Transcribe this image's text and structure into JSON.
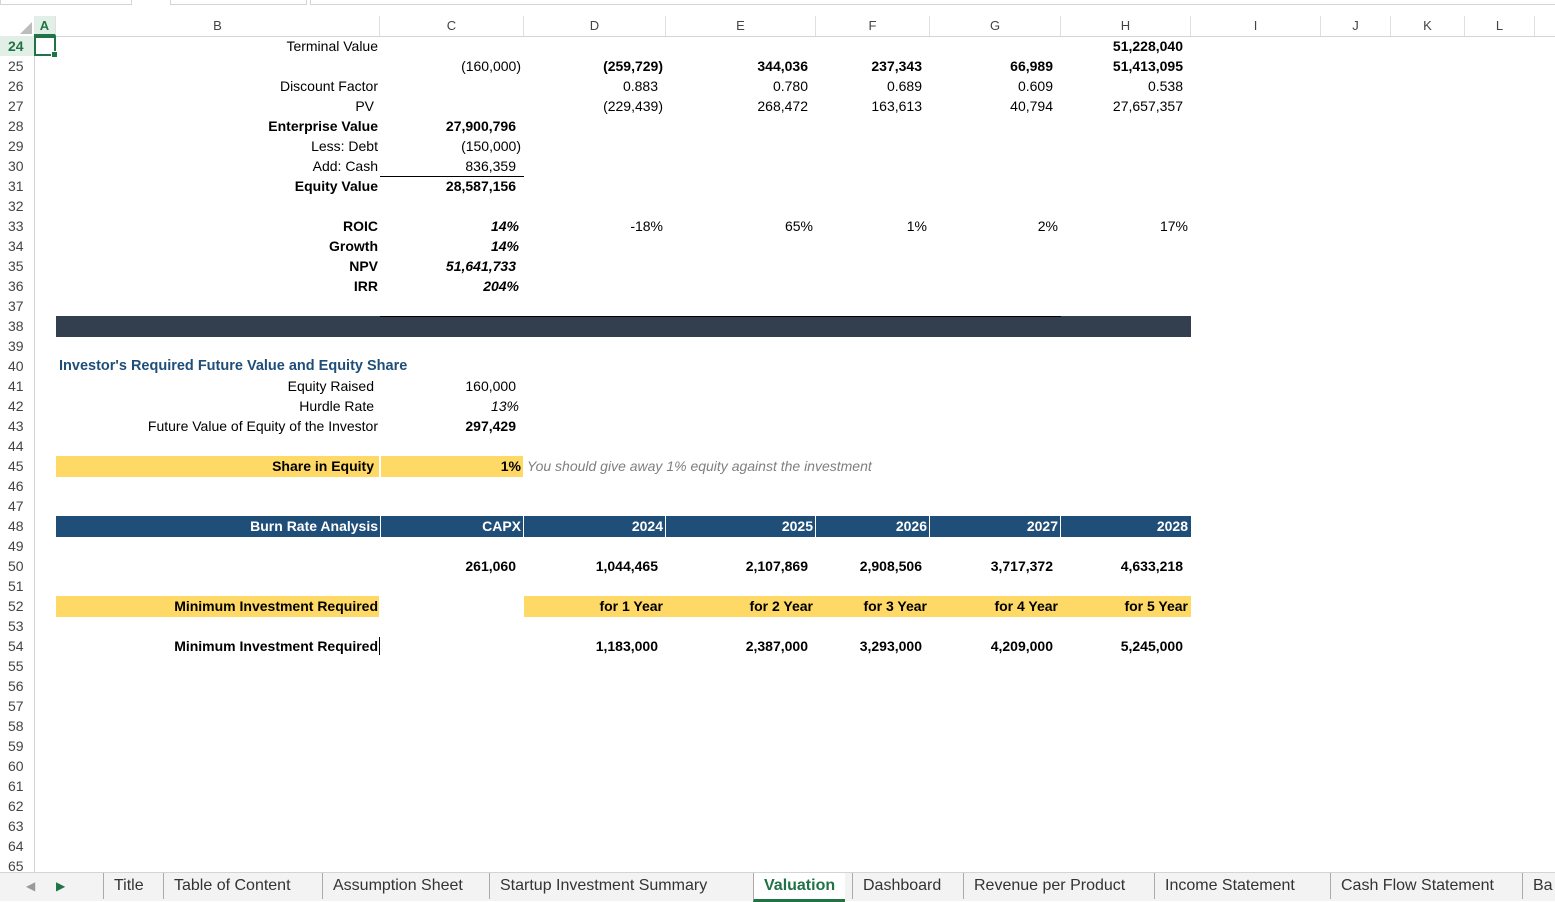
{
  "column_headers": [
    "A",
    "B",
    "C",
    "D",
    "E",
    "F",
    "G",
    "H",
    "I",
    "J",
    "K",
    "L"
  ],
  "row_numbers": [
    "24",
    "25",
    "26",
    "27",
    "28",
    "29",
    "30",
    "31",
    "32",
    "33",
    "34",
    "35",
    "36",
    "37",
    "38",
    "39",
    "40",
    "41",
    "42",
    "43",
    "44",
    "45",
    "46",
    "47",
    "48",
    "49",
    "50",
    "51",
    "52",
    "53",
    "54",
    "55",
    "56",
    "57",
    "58",
    "59",
    "60",
    "61",
    "62",
    "63",
    "64",
    "65"
  ],
  "valuation": {
    "terminal_value_label": "Terminal Value",
    "terminal_value_h": "51,228,040",
    "cashflow": {
      "c": "(160,000)",
      "d": "(259,729)",
      "e": "344,036",
      "f": "237,343",
      "g": "66,989",
      "h": "51,413,095"
    },
    "discount_factor": {
      "label": "Discount Factor",
      "d": "0.883",
      "e": "0.780",
      "f": "0.689",
      "g": "0.609",
      "h": "0.538"
    },
    "pv": {
      "label": "PV",
      "d": "(229,439)",
      "e": "268,472",
      "f": "163,613",
      "g": "40,794",
      "h": "27,657,357"
    },
    "enterprise_value": {
      "label": "Enterprise Value",
      "value": "27,900,796"
    },
    "less_debt": {
      "label": "Less: Debt",
      "value": "(150,000)"
    },
    "add_cash": {
      "label": "Add: Cash",
      "value": "836,359"
    },
    "equity_value": {
      "label": "Equity Value",
      "value": "28,587,156"
    },
    "roic": {
      "label": "ROIC",
      "c": "14%",
      "d": "-18%",
      "e": "65%",
      "f": "1%",
      "g": "2%",
      "h": "17%"
    },
    "growth": {
      "label": "Growth",
      "value": "14%"
    },
    "npv": {
      "label": "NPV",
      "value": "51,641,733"
    },
    "irr": {
      "label": "IRR",
      "value": "204%"
    }
  },
  "investor": {
    "title": "Investor's Required Future Value and Equity Share",
    "equity_raised": {
      "label": "Equity Raised",
      "value": "160,000"
    },
    "hurdle_rate": {
      "label": "Hurdle Rate",
      "value": "13%"
    },
    "future_value": {
      "label": "Future Value of Equity of the Investor",
      "value": "297,429"
    },
    "share": {
      "label": "Share in Equity",
      "value": "1%",
      "note": "You should give away 1% equity against the investment"
    }
  },
  "burn": {
    "header_label": "Burn Rate Analysis",
    "col_headers": [
      "CAPX",
      "2024",
      "2025",
      "2026",
      "2027",
      "2028"
    ],
    "values": [
      "261,060",
      "1,044,465",
      "2,107,869",
      "2,908,506",
      "3,717,372",
      "4,633,218"
    ],
    "min_label": "Minimum Investment Required",
    "min_periods": [
      "for 1 Year",
      "for 2 Year",
      "for 3 Year",
      "for 4 Year",
      "for 5 Year"
    ],
    "min_label2": "Minimum Investment Required",
    "min_values": [
      "1,183,000",
      "2,387,000",
      "3,293,000",
      "4,209,000",
      "5,245,000"
    ]
  },
  "sheet_tabs": [
    "Title",
    "Table of Content",
    "Assumption Sheet",
    "Startup Investment Summary",
    "Valuation",
    "Dashboard",
    "Revenue per Product",
    "Income Statement",
    "Cash Flow Statement",
    "Ba"
  ],
  "active_tab": "Valuation",
  "colors": {
    "accent": "#217346",
    "dark_band": "#333f4f",
    "blue_header": "#1f4e79",
    "yellow": "#ffd966",
    "title_blue": "#1f4e79"
  }
}
